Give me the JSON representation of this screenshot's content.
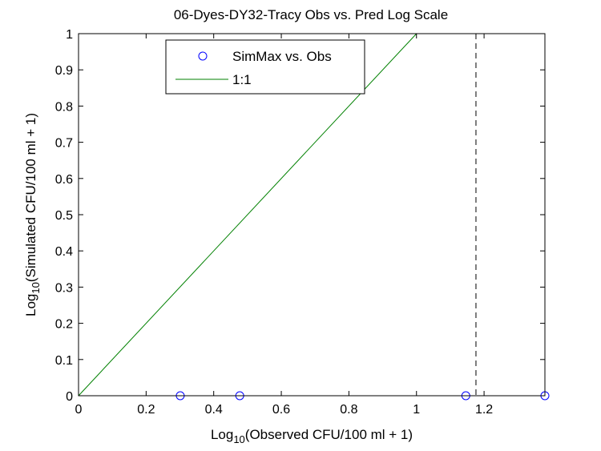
{
  "chart_data": {
    "type": "scatter",
    "title": "06-Dyes-DY32-Tracy Obs vs. Pred Log Scale",
    "xlabel": {
      "prefix": "Log",
      "sub": "10",
      "suffix": "(Observed CFU/100 ml + 1)"
    },
    "ylabel": {
      "prefix": "Log",
      "sub": "10",
      "suffix": "(Simulated CFU/100 ml + 1)"
    },
    "xlim": [
      0,
      1.38
    ],
    "ylim": [
      0,
      1
    ],
    "xticks": [
      0,
      0.2,
      0.4,
      0.6,
      0.8,
      1,
      1.2
    ],
    "xtick_labels": [
      "0",
      "0.2",
      "0.4",
      "0.6",
      "0.8",
      "1",
      "1.2"
    ],
    "yticks": [
      0,
      0.1,
      0.2,
      0.3,
      0.4,
      0.5,
      0.6,
      0.7,
      0.8,
      0.9,
      1
    ],
    "ytick_labels": [
      "0",
      "0.1",
      "0.2",
      "0.3",
      "0.4",
      "0.5",
      "0.6",
      "0.7",
      "0.8",
      "0.9",
      "1"
    ],
    "series": [
      {
        "name": "SimMax vs. Obs",
        "kind": "scatter",
        "marker": "circle",
        "color": "#0000ff",
        "x": [
          0.301,
          0.477,
          1.146,
          1.38
        ],
        "y": [
          0,
          0,
          0,
          0
        ]
      },
      {
        "name": "1:1",
        "kind": "line",
        "color": "#008000",
        "x": [
          0,
          1
        ],
        "y": [
          0,
          1
        ]
      }
    ],
    "reference_line": {
      "kind": "vertical-dashed",
      "x": 1.176,
      "color": "#000000"
    },
    "legend": {
      "placement": "top-left"
    },
    "grid": false
  }
}
